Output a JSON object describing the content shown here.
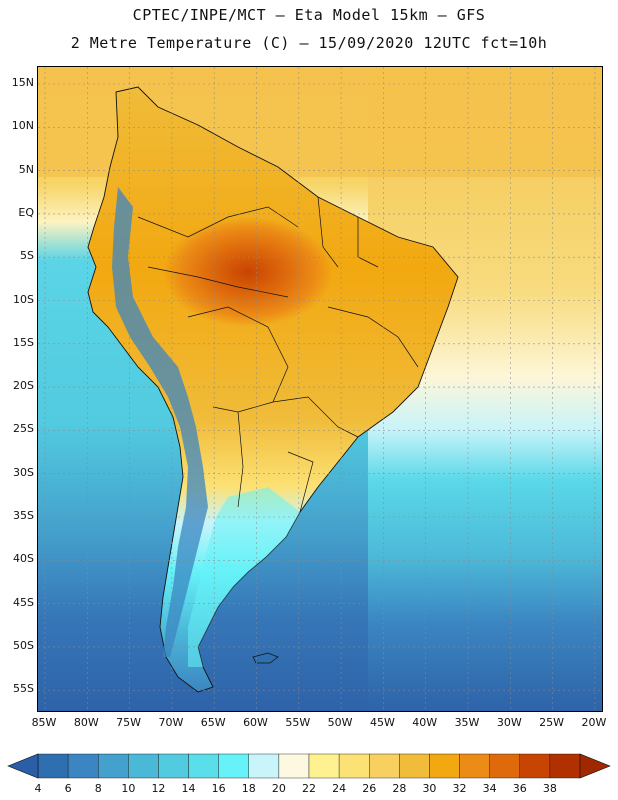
{
  "title_line1": "CPTEC/INPE/MCT –  Eta Model 15km – GFS",
  "title_line2": "2 Metre Temperature (C) – 15/09/2020 12UTC fct=10h",
  "lat_labels": [
    "15N",
    "10N",
    "5N",
    "EQ",
    "5S",
    "10S",
    "15S",
    "20S",
    "25S",
    "30S",
    "35S",
    "40S",
    "45S",
    "50S",
    "55S"
  ],
  "lon_labels": [
    "85W",
    "80W",
    "75W",
    "70W",
    "65W",
    "60W",
    "55W",
    "50W",
    "45W",
    "40W",
    "35W",
    "30W",
    "25W",
    "20W"
  ],
  "colorbar": {
    "labels": [
      "4",
      "6",
      "8",
      "10",
      "12",
      "14",
      "16",
      "18",
      "20",
      "22",
      "24",
      "26",
      "28",
      "30",
      "32",
      "34",
      "36",
      "38"
    ],
    "colors": [
      "#2e6fb0",
      "#3b86c2",
      "#44a0cc",
      "#4cb8d8",
      "#52cbe0",
      "#5adeea",
      "#66f2f8",
      "#c8f4fa",
      "#fdf8e0",
      "#fdf190",
      "#fce174",
      "#f7d060",
      "#f0bc3a",
      "#f2a810",
      "#ec8c16",
      "#de6a0c",
      "#c84402",
      "#b03000"
    ]
  },
  "icons": {
    "colorbar_left": "triangle-left-icon",
    "colorbar_right": "triangle-right-icon"
  }
}
